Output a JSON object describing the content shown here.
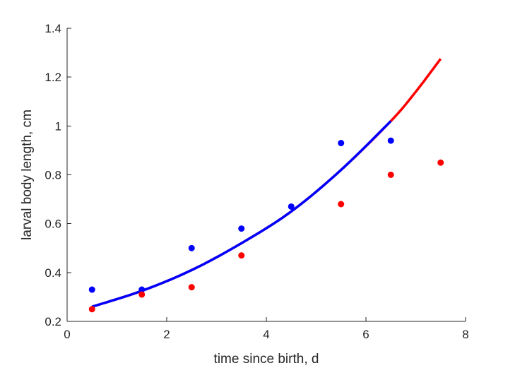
{
  "chart_data": {
    "type": "scatter",
    "title": "",
    "xlabel": "time since birth, d",
    "ylabel": "larval body length, cm",
    "xlim": [
      0,
      8
    ],
    "ylim": [
      0.2,
      1.4
    ],
    "xticks": [
      0,
      2,
      4,
      6,
      8
    ],
    "yticks": [
      0.2,
      0.4,
      0.6,
      0.8,
      1,
      1.2,
      1.4
    ],
    "xtick_labels": [
      "0",
      "2",
      "4",
      "6",
      "8"
    ],
    "ytick_labels": [
      "0.2",
      "0.4",
      "0.6",
      "0.8",
      "1",
      "1.2",
      "1.4"
    ],
    "grid": false,
    "legend": "none",
    "series": [
      {
        "kind": "scatter",
        "color": "#0000ff",
        "x": [
          0.5,
          1.5,
          2.5,
          3.5,
          4.5,
          5.5,
          6.5
        ],
        "y": [
          0.33,
          0.33,
          0.5,
          0.58,
          0.67,
          0.93,
          0.94
        ]
      },
      {
        "kind": "scatter",
        "color": "#ff0000",
        "x": [
          0.5,
          1.5,
          2.5,
          3.5,
          5.5,
          6.5,
          7.5
        ],
        "y": [
          0.25,
          0.31,
          0.34,
          0.47,
          0.68,
          0.8,
          0.85
        ]
      },
      {
        "kind": "line",
        "color": "#ff0000",
        "x": [
          0.5,
          1.5,
          2.5,
          3.5,
          4.5,
          5.5,
          6.5,
          7.0,
          7.5
        ],
        "y": [
          0.26,
          0.325,
          0.41,
          0.52,
          0.65,
          0.82,
          1.02,
          1.14,
          1.275
        ]
      },
      {
        "kind": "line",
        "color": "#0000ff",
        "x": [
          0.5,
          1.5,
          2.5,
          3.5,
          4.5,
          5.5,
          6.5
        ],
        "y": [
          0.26,
          0.325,
          0.41,
          0.52,
          0.65,
          0.82,
          1.02
        ]
      }
    ]
  }
}
